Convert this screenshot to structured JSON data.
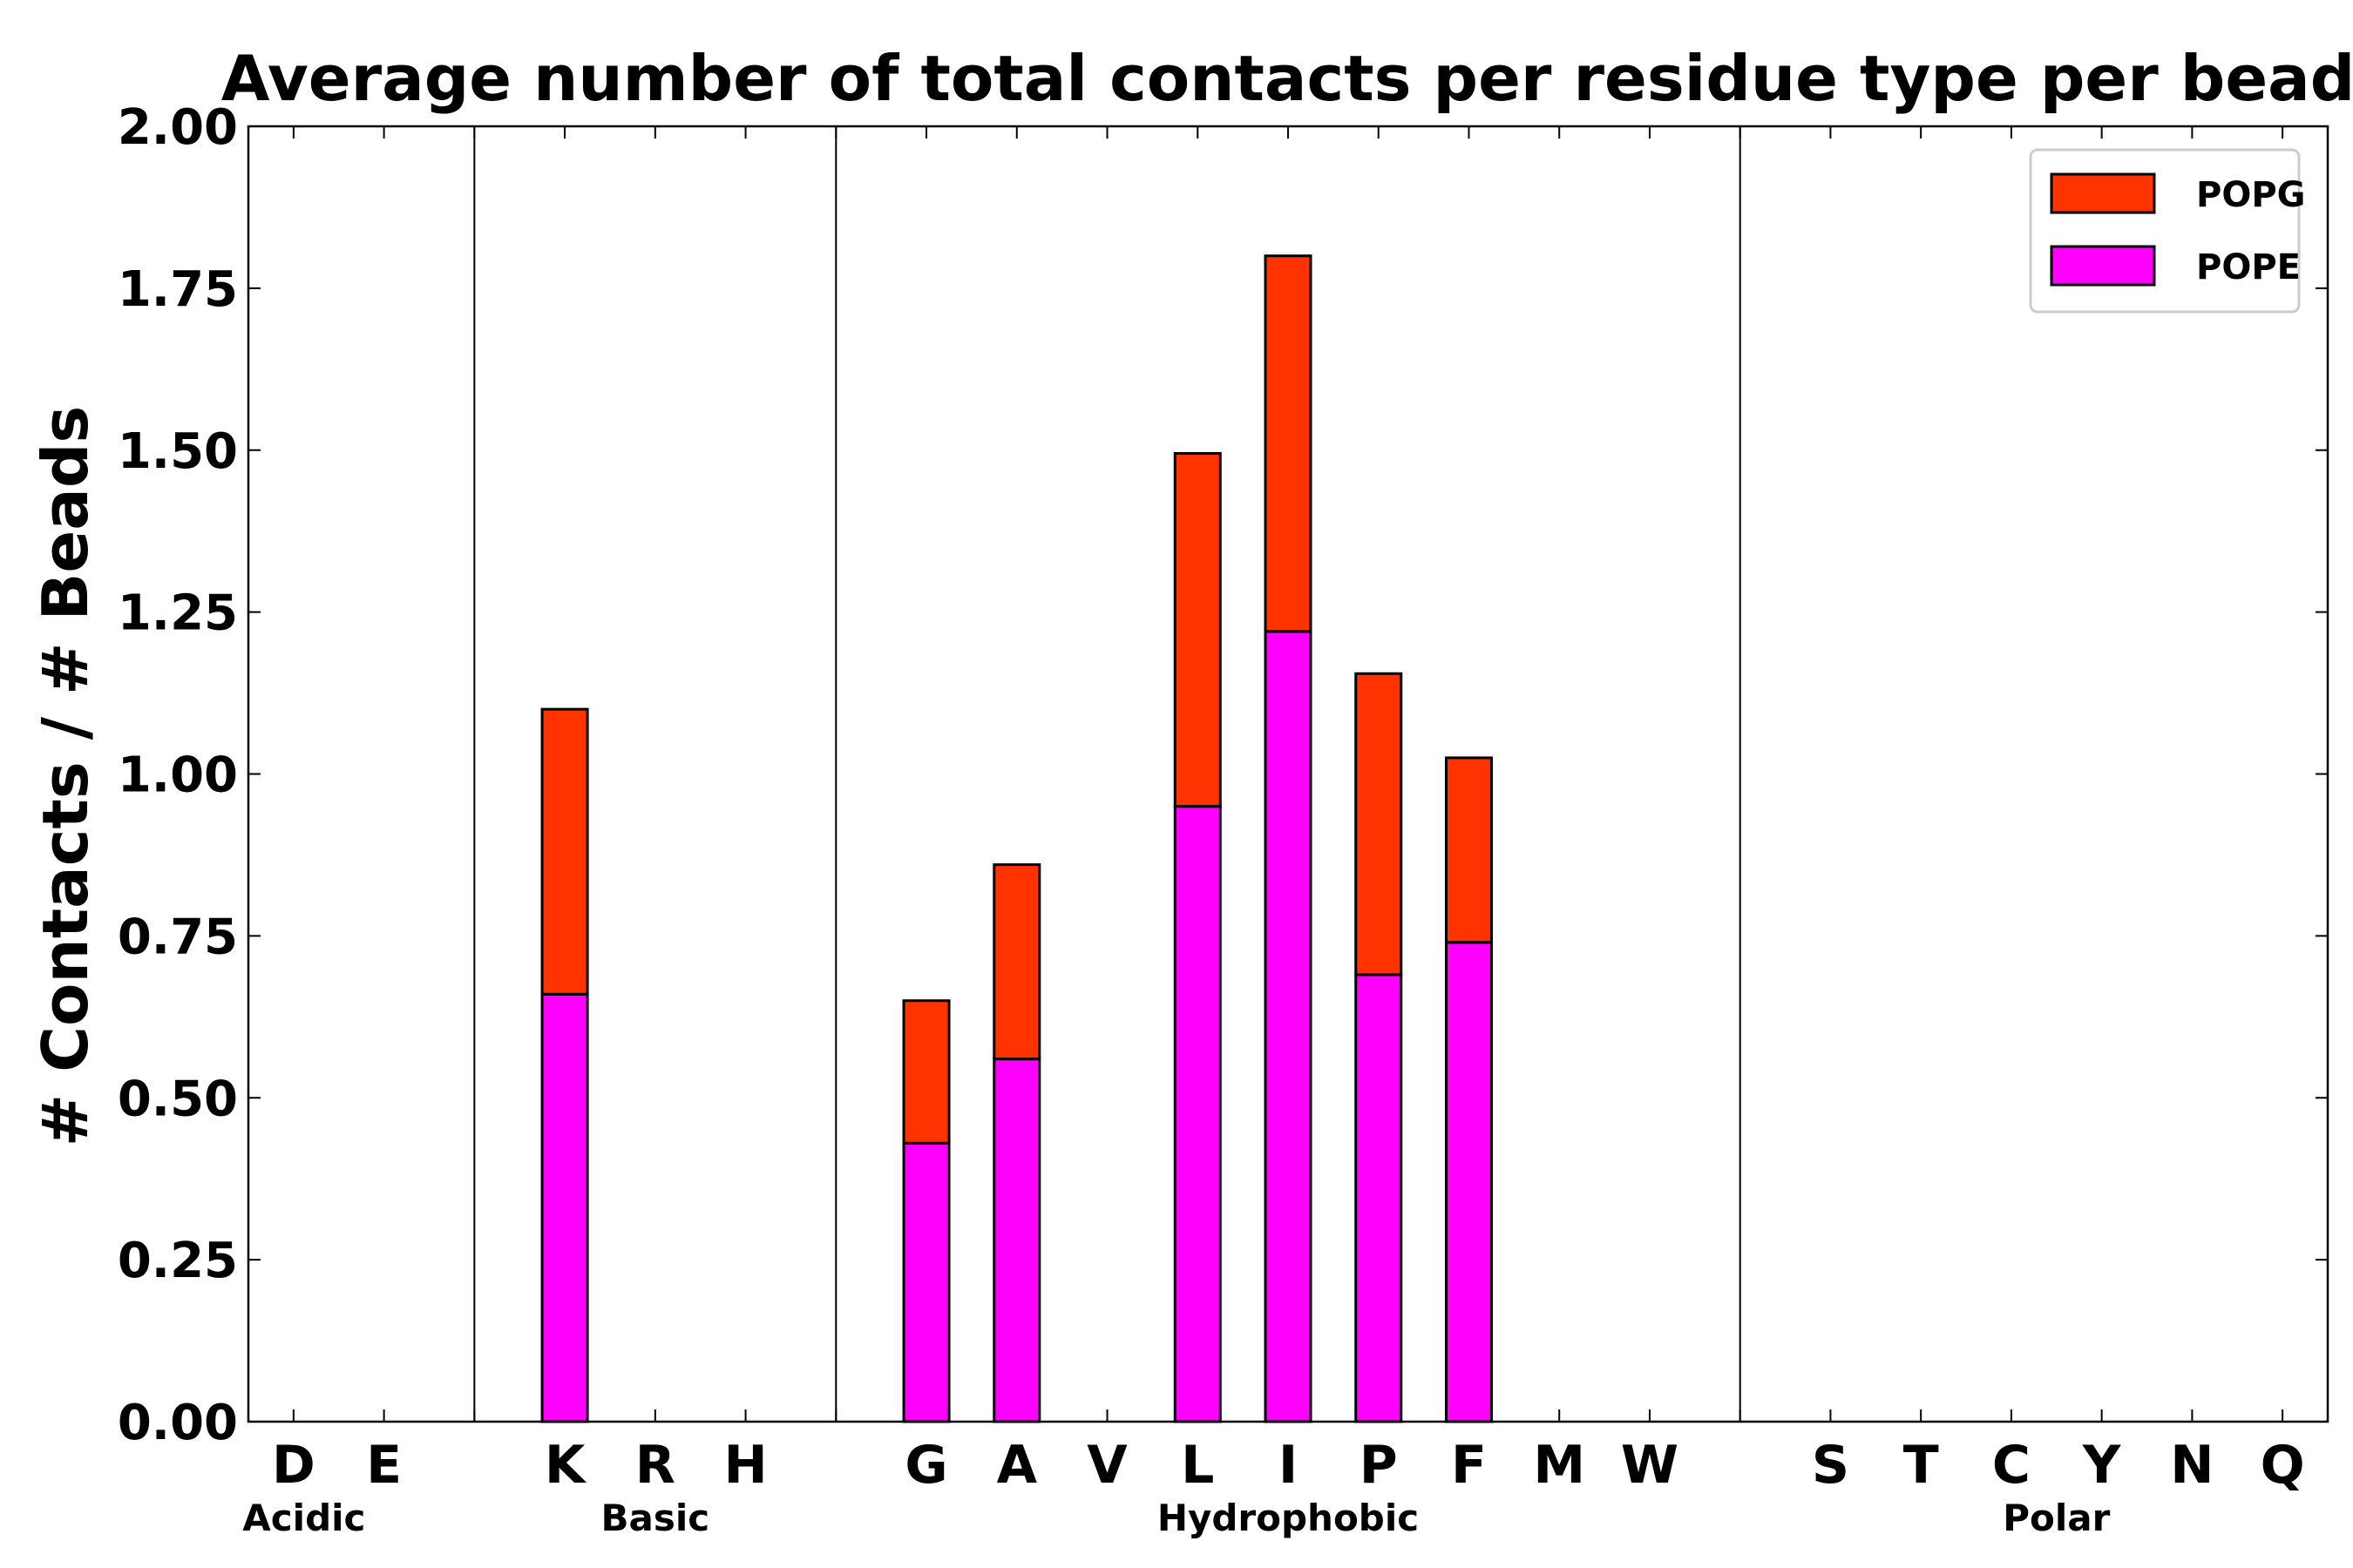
{
  "chart_data": {
    "type": "bar",
    "stacked": true,
    "title": "Average number of total contacts per residue type per bead",
    "xlabel": "",
    "ylabel": "# Contacts / # Beads",
    "ylim": [
      0,
      2.0
    ],
    "yticks": [
      "0.00",
      "0.25",
      "0.50",
      "0.75",
      "1.00",
      "1.25",
      "1.50",
      "1.75",
      "2.00"
    ],
    "legend_position": "top-right",
    "categories": [
      "D",
      "E",
      "",
      "K",
      "R",
      "H",
      "",
      "G",
      "A",
      "V",
      "L",
      "I",
      "P",
      "F",
      "M",
      "W",
      "",
      "S",
      "T",
      "C",
      "Y",
      "N",
      "Q"
    ],
    "groups": [
      {
        "name": "Acidic",
        "members": [
          "D",
          "E"
        ]
      },
      {
        "name": "Basic",
        "members": [
          "K",
          "R",
          "H"
        ]
      },
      {
        "name": "Hydrophobic",
        "members": [
          "G",
          "A",
          "V",
          "L",
          "I",
          "P",
          "F",
          "M",
          "W"
        ]
      },
      {
        "name": "Polar",
        "members": [
          "S",
          "T",
          "C",
          "Y",
          "N",
          "Q"
        ]
      }
    ],
    "series": [
      {
        "name": "POPE",
        "color": "#ff00ff",
        "values": [
          0,
          0,
          0,
          0.66,
          0,
          0,
          0,
          0.43,
          0.56,
          0,
          0.95,
          1.22,
          0.69,
          0.74,
          0,
          0,
          0,
          0,
          0,
          0,
          0,
          0,
          0
        ]
      },
      {
        "name": "POPG",
        "color": "#ff3300",
        "values": [
          0,
          0,
          0,
          0.44,
          0,
          0,
          0,
          0.22,
          0.3,
          0,
          0.545,
          0.58,
          0.465,
          0.285,
          0,
          0,
          0,
          0,
          0,
          0,
          0,
          0,
          0
        ]
      }
    ]
  }
}
